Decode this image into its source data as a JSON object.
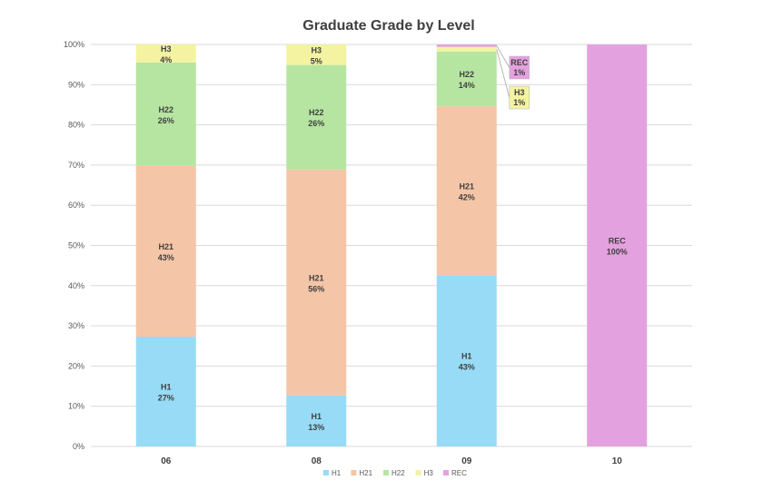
{
  "chart_data": {
    "type": "bar",
    "stacked": true,
    "percent_stacked": true,
    "title": "Graduate Grade by Level",
    "xlabel": "",
    "ylabel": "",
    "ylim": [
      0,
      100
    ],
    "y_ticks": [
      "0%",
      "10%",
      "20%",
      "30%",
      "40%",
      "50%",
      "60%",
      "70%",
      "80%",
      "90%",
      "100%"
    ],
    "categories": [
      "06",
      "08",
      "09",
      "10"
    ],
    "series": [
      {
        "name": "H1",
        "color": "#97DBF6",
        "values": [
          27.3,
          12.7,
          42.6,
          0
        ]
      },
      {
        "name": "H21",
        "color": "#F5C5A7",
        "values": [
          42.5,
          56.2,
          42.0,
          0
        ]
      },
      {
        "name": "H22",
        "color": "#B6E5A1",
        "values": [
          25.7,
          26.0,
          13.6,
          0
        ]
      },
      {
        "name": "H3",
        "color": "#F3F3A2",
        "values": [
          4.5,
          5.1,
          1.2,
          0
        ]
      },
      {
        "name": "REC",
        "color": "#E4A1DF",
        "values": [
          0,
          0,
          0.6,
          100
        ]
      }
    ],
    "data_labels": [
      {
        "category": "06",
        "series": "H1",
        "text": "27%"
      },
      {
        "category": "06",
        "series": "H21",
        "text": "43%"
      },
      {
        "category": "06",
        "series": "H22",
        "text": "26%"
      },
      {
        "category": "06",
        "series": "H3",
        "text": "4%"
      },
      {
        "category": "08",
        "series": "H1",
        "text": "13%"
      },
      {
        "category": "08",
        "series": "H21",
        "text": "56%"
      },
      {
        "category": "08",
        "series": "H22",
        "text": "26%"
      },
      {
        "category": "08",
        "series": "H3",
        "text": "5%"
      },
      {
        "category": "09",
        "series": "H1",
        "text": "43%"
      },
      {
        "category": "09",
        "series": "H21",
        "text": "42%"
      },
      {
        "category": "09",
        "series": "H22",
        "text": "14%"
      },
      {
        "category": "09",
        "series": "H3",
        "text": "1%",
        "callout": true
      },
      {
        "category": "09",
        "series": "REC",
        "text": "1%",
        "callout": true
      },
      {
        "category": "10",
        "series": "REC",
        "text": "100%"
      }
    ],
    "grid": true,
    "legend": "bottom"
  }
}
